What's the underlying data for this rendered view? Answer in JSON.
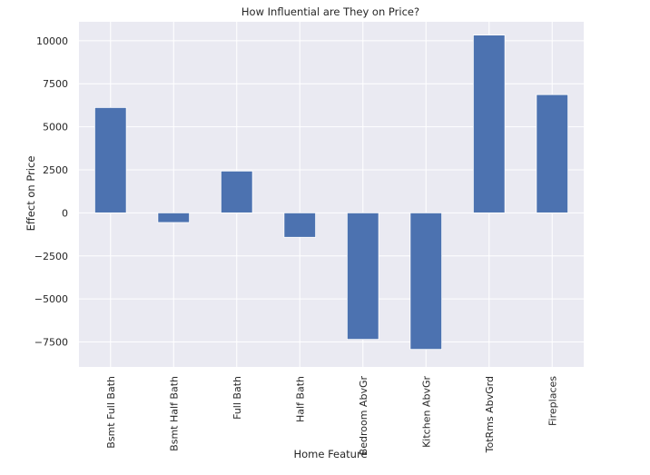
{
  "chart_data": {
    "type": "bar",
    "title": "How Influential are They on Price?",
    "xlabel": "Home Feature",
    "ylabel": "Effect on Price",
    "categories": [
      "Bsmt Full Bath",
      "Bsmt Half Bath",
      "Full Bath",
      "Half Bath",
      "Bedroom AbvGr",
      "Kitchen AbvGr",
      "TotRms AbvGrd",
      "Fireplaces"
    ],
    "values": [
      6120,
      -560,
      2430,
      -1420,
      -7350,
      -7930,
      10330,
      6870
    ],
    "ylim": [
      -8950,
      11100
    ],
    "yticks": [
      10000,
      7500,
      5000,
      2500,
      0,
      -2500,
      -5000,
      -7500
    ],
    "ytick_labels": [
      "10000",
      "7500",
      "5000",
      "2500",
      "0",
      "−2500",
      "−5000",
      "−7500"
    ],
    "grid": true,
    "bar_color": "#4c72b0",
    "background_color": "#eaeaf2",
    "grid_color": "#ffffff"
  }
}
